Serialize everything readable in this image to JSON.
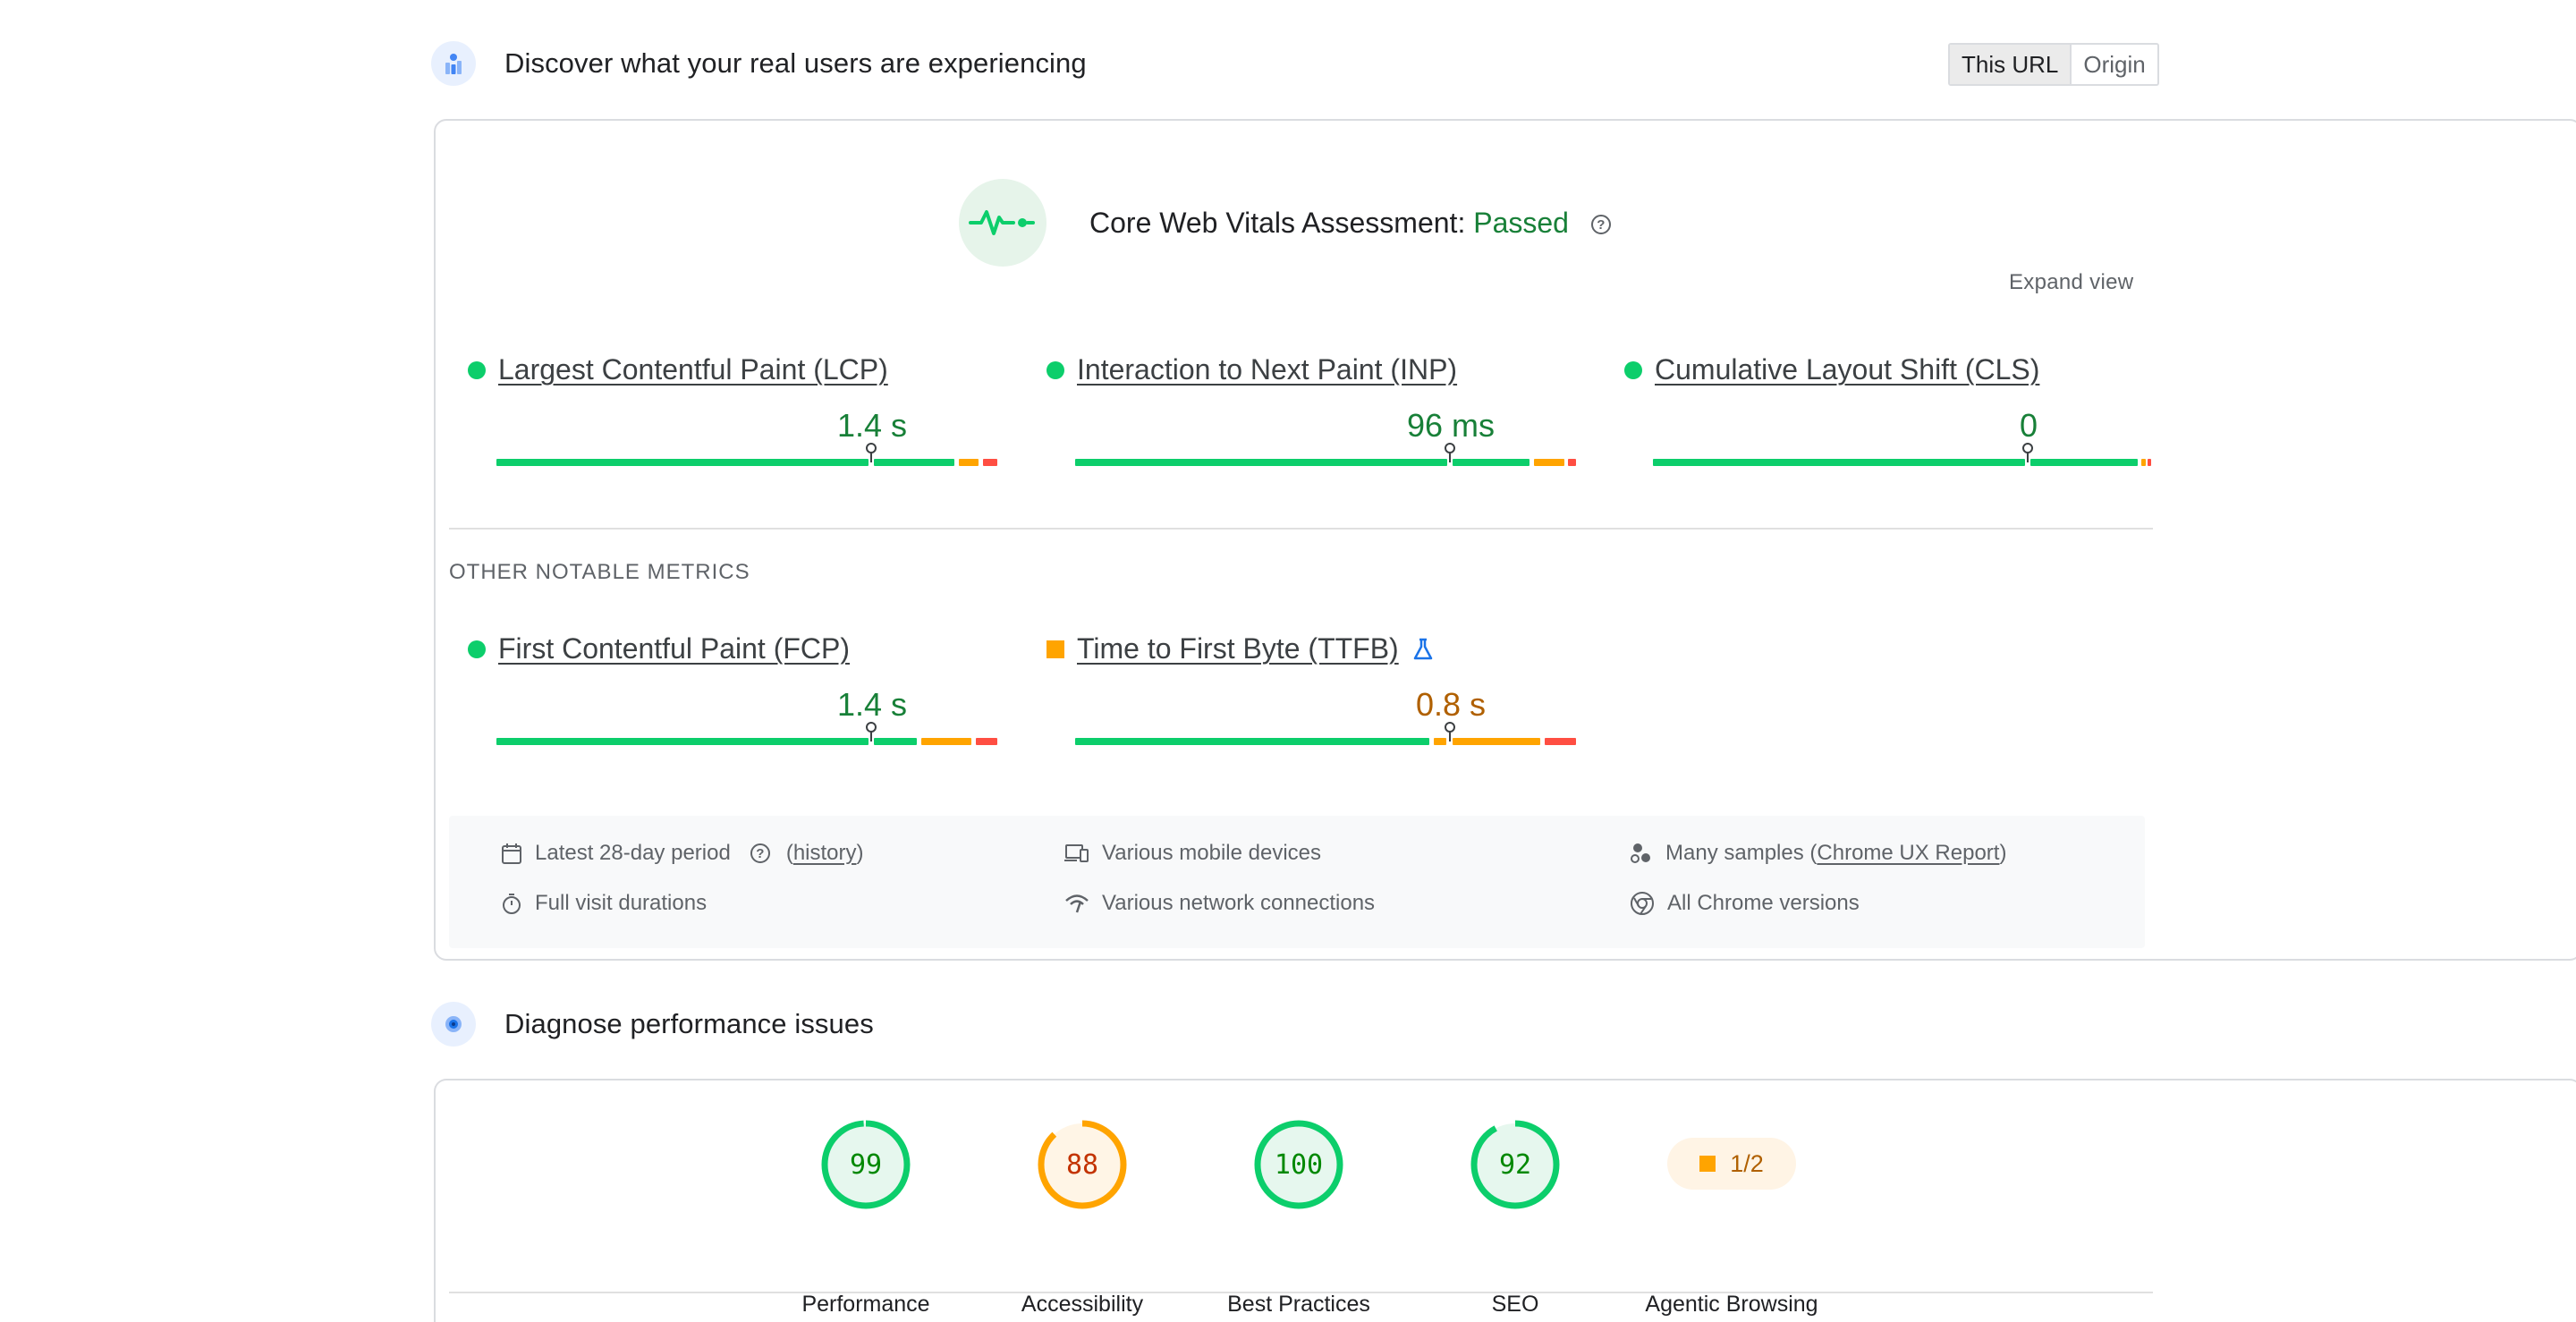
{
  "crux": {
    "title": "Discover what your real users are experiencing",
    "toggle": [
      "This URL",
      "Origin"
    ],
    "assessment_label": "Core Web Vitals Assessment:",
    "assessment_status": "Passed",
    "expand": "Expand view",
    "core_metrics": [
      {
        "name": "Largest Contentful Paint (LCP)",
        "value": "1.4 s",
        "rating": "good",
        "marker": 0.75,
        "dist": [
          0.92,
          0.05,
          0.03
        ]
      },
      {
        "name": "Interaction to Next Paint (INP)",
        "value": "96 ms",
        "rating": "good",
        "marker": 0.75,
        "dist": [
          0.91,
          0.06,
          0.03
        ]
      },
      {
        "name": "Cumulative Layout Shift (CLS)",
        "value": "0",
        "rating": "good",
        "marker": 0.75,
        "dist": [
          0.98,
          0.01,
          0.01
        ]
      }
    ],
    "other_label": "OTHER NOTABLE METRICS",
    "other_metrics": [
      {
        "name": "First Contentful Paint (FCP)",
        "value": "1.4 s",
        "rating": "good",
        "marker": 0.75,
        "dist": [
          0.84,
          0.11,
          0.05
        ]
      },
      {
        "name": "Time to First Byte (TTFB)",
        "value": "0.8 s",
        "rating": "ni",
        "marker": 0.75,
        "dist": [
          0.74,
          0.2,
          0.06
        ],
        "experimental": true
      }
    ],
    "info": {
      "period": "Latest 28-day period",
      "history_open": "(",
      "history": "history",
      "history_close": ")",
      "durations": "Full visit durations",
      "devices": "Various mobile devices",
      "network": "Various network connections",
      "samples_prefix": "Many samples (",
      "samples_link": "Chrome UX Report",
      "samples_suffix": ")",
      "chrome": "All Chrome versions"
    }
  },
  "diagnose": {
    "title": "Diagnose performance issues",
    "scores": [
      {
        "label": "Performance",
        "score": 99,
        "color": "#0cce6b",
        "bg": "#e6f7ee",
        "text": "#008800"
      },
      {
        "label": "Accessibility",
        "score": 88,
        "color": "#ffa400",
        "bg": "#fff5e6",
        "text": "#c33300"
      },
      {
        "label": "Best Practices",
        "score": 100,
        "color": "#0cce6b",
        "bg": "#e6f7ee",
        "text": "#008800"
      },
      {
        "label": "SEO",
        "score": 92,
        "color": "#0cce6b",
        "bg": "#e6f7ee",
        "text": "#008800"
      }
    ],
    "agentic": {
      "label": "Agentic Browsing",
      "value": "1/2"
    }
  },
  "colors": {
    "good": "#0cce6b",
    "ni": "#ffa400",
    "poor": "#ff4e42"
  }
}
